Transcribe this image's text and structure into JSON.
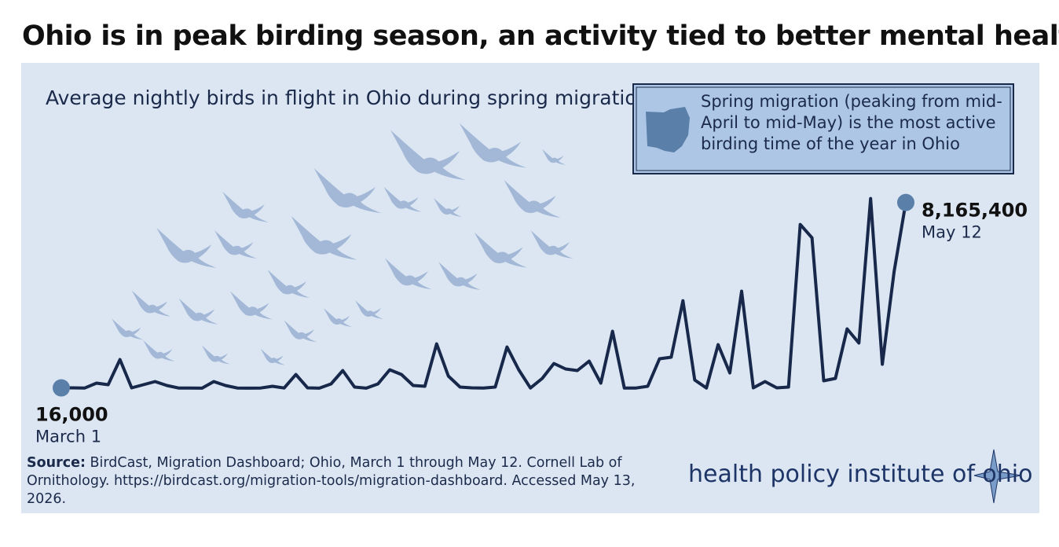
{
  "title": "Ohio is in peak birding season, an activity tied to better mental health",
  "chart_data": {
    "type": "line",
    "subtitle": "Average nightly birds in flight in Ohio during spring migration",
    "categories": [
      "March 1",
      null,
      null,
      null,
      null,
      null,
      null,
      null,
      null,
      null,
      null,
      null,
      null,
      null,
      null,
      null,
      null,
      null,
      null,
      null,
      null,
      null,
      null,
      null,
      null,
      null,
      null,
      null,
      null,
      null,
      null,
      null,
      null,
      null,
      null,
      null,
      null,
      null,
      null,
      null,
      null,
      null,
      null,
      null,
      null,
      null,
      null,
      null,
      null,
      null,
      null,
      null,
      null,
      null,
      null,
      null,
      null,
      null,
      null,
      null,
      null,
      null,
      null,
      null,
      null,
      null,
      null,
      null,
      null,
      null,
      null,
      null,
      "May 12"
    ],
    "series": [
      {
        "color": "#17284a",
        "values": [
          16000,
          17000,
          10000,
          224000,
          155000,
          1260000,
          17000,
          155000,
          294000,
          121000,
          10000,
          10000,
          5000,
          294000,
          121000,
          10000,
          5000,
          10000,
          86000,
          10000,
          604000,
          17000,
          5000,
          190000,
          777000,
          52000,
          5000,
          190000,
          811000,
          604000,
          121000,
          86000,
          1951000,
          535000,
          52000,
          17000,
          10000,
          52000,
          1813000,
          811000,
          10000,
          432000,
          1088000,
          846000,
          777000,
          1191000,
          224000,
          2503000,
          10000,
          10000,
          86000,
          1295000,
          1364000,
          3850000,
          363000,
          10000,
          1916000,
          673000,
          4265000,
          17000,
          294000,
          17000,
          52000,
          7200000,
          6613000,
          328000,
          432000,
          2607000,
          1986000,
          8339000,
          1053000,
          5128000,
          8165400
        ],
        "value_labels": [
          "16,000",
          null,
          null,
          null,
          null,
          null,
          null,
          null,
          null,
          null,
          null,
          null,
          null,
          null,
          null,
          null,
          null,
          null,
          null,
          null,
          null,
          null,
          null,
          null,
          null,
          null,
          null,
          null,
          null,
          null,
          null,
          null,
          null,
          null,
          null,
          null,
          null,
          null,
          null,
          null,
          null,
          null,
          null,
          null,
          null,
          null,
          null,
          null,
          null,
          null,
          null,
          null,
          null,
          null,
          null,
          null,
          null,
          null,
          null,
          null,
          null,
          null,
          null,
          null,
          null,
          null,
          null,
          null,
          null,
          null,
          null,
          null,
          "8,165,400"
        ]
      }
    ],
    "marker_color": "#5a7fa9",
    "ylim": [
      0,
      9500000
    ],
    "grid": false
  },
  "callout": "Spring migration (peaking from mid-April to mid-May) is the most active birding time of the year in Ohio",
  "source": {
    "label": "Source:",
    "text": "BirdCast, Migration Dashboard; Ohio, March 1 through May 12. Cornell Lab of Ornithology. https://birdcast.org/migration-tools/migration-dashboard. Accessed May 13, 2026."
  },
  "logo": "health policy institute of ohio"
}
